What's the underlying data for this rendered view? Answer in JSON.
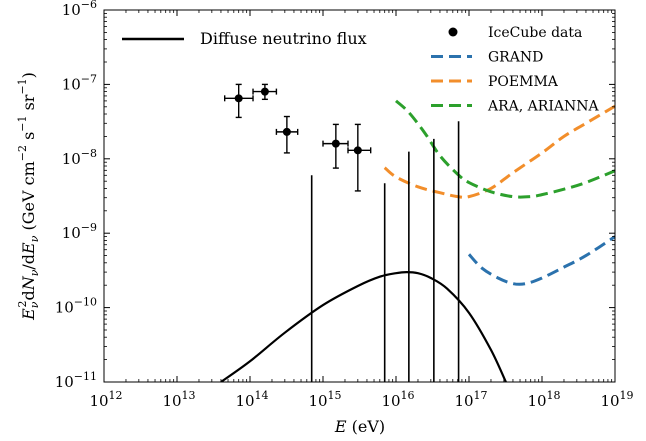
{
  "chart_data": {
    "type": "line",
    "x_scale": "log",
    "y_scale": "log",
    "xlim": [
      1000000000000.0,
      1e+19
    ],
    "ylim": [
      1e-11,
      1e-06
    ],
    "xlabel": "E (eV)",
    "ylabel": "E_ν^2 dN_ν/dE_ν (GeV cm^-2 s^-1 sr^-1)",
    "x_tick_labels": [
      "10^12",
      "10^13",
      "10^14",
      "10^15",
      "10^16",
      "10^17",
      "10^18",
      "10^19"
    ],
    "y_tick_labels": [
      "10^-11",
      "10^-10",
      "10^-9",
      "10^-8",
      "10^-7",
      "10^-6"
    ],
    "grid": false,
    "legends": [
      {
        "placement": "top-left",
        "entries": [
          "Diffuse neutrino flux"
        ]
      },
      {
        "placement": "top-right",
        "entries": [
          "IceCube data",
          "GRAND",
          "POEMMA",
          "ARA, ARIANNA"
        ]
      }
    ],
    "series": [
      {
        "name": "Diffuse neutrino flux",
        "style": "solid",
        "color": "#000000",
        "x": [
          40000000000000.0,
          100000000000000.0,
          300000000000000.0,
          1000000000000000.0,
          3000000000000000.0,
          6000000000000000.0,
          1e+16,
          1.4e+16,
          2e+16,
          3e+16,
          5e+16,
          1e+17,
          2e+17,
          3.2e+17
        ],
        "y": [
          1e-11,
          1.9e-11,
          4.6e-11,
          1.08e-10,
          1.95e-10,
          2.6e-10,
          2.9e-10,
          3e-10,
          2.9e-10,
          2.5e-10,
          1.8e-10,
          8.5e-11,
          2.7e-11,
          1e-11
        ]
      },
      {
        "name": "GRAND",
        "style": "dashed",
        "color": "#2b72ad",
        "x": [
          1e+17,
          1.5e+17,
          2.5e+17,
          4e+17,
          6e+17,
          1e+18,
          2e+18,
          4e+18,
          1e+19
        ],
        "y": [
          5.2e-10,
          3.4e-10,
          2.5e-10,
          2.1e-10,
          2.1e-10,
          2.5e-10,
          3.5e-10,
          5e-10,
          9e-10
        ]
      },
      {
        "name": "POEMMA",
        "style": "dashed",
        "color": "#f28e2b",
        "x": [
          7000000000000000.0,
          1e+16,
          2e+16,
          4e+16,
          7e+16,
          1e+17,
          2e+17,
          4e+17,
          1e+18,
          2e+18,
          4e+18,
          1e+19
        ],
        "y": [
          7.6e-09,
          5.7e-09,
          4.2e-09,
          3.5e-09,
          3.1e-09,
          3.1e-09,
          4e-09,
          6.5e-09,
          1.2e-08,
          2e-08,
          3e-08,
          5.1e-08
        ]
      },
      {
        "name": "ARA, ARIANNA",
        "style": "dashed",
        "color": "#2ca02c",
        "x": [
          1e+16,
          1.5e+16,
          2.5e+16,
          4e+16,
          7e+16,
          1e+17,
          2e+17,
          4e+17,
          7e+17,
          1e+18,
          2e+18,
          4e+18,
          1e+19
        ],
        "y": [
          6e-08,
          4.2e-08,
          2.2e-08,
          1.1e-08,
          6.2e-09,
          4.8e-09,
          3.6e-09,
          3.1e-09,
          3.1e-09,
          3.3e-09,
          3.9e-09,
          4.8e-09,
          6.9e-09
        ]
      }
    ],
    "icecube_points": [
      {
        "x": 70000000000000.0,
        "y": 6.5e-08,
        "x_err": [
          45000000000000.0,
          110000000000000.0
        ],
        "y_err": [
          3.6e-08,
          1e-07
        ]
      },
      {
        "x": 160000000000000.0,
        "y": 8e-08,
        "x_err": [
          110000000000000.0,
          230000000000000.0
        ],
        "y_err": [
          6.3e-08,
          1e-07
        ]
      },
      {
        "x": 320000000000000.0,
        "y": 2.3e-08,
        "x_err": [
          230000000000000.0,
          450000000000000.0
        ],
        "y_err": [
          1.2e-08,
          3.7e-08
        ]
      },
      {
        "x": 1500000000000000.0,
        "y": 1.6e-08,
        "x_err": [
          1000000000000000.0,
          2200000000000000.0
        ],
        "y_err": [
          7.5e-09,
          2.9e-08
        ]
      },
      {
        "x": 3000000000000000.0,
        "y": 1.3e-08,
        "x_err": [
          2200000000000000.0,
          4500000000000000.0
        ],
        "y_err": [
          3.7e-09,
          2.9e-08
        ]
      }
    ],
    "upper_limits": [
      {
        "x": 700000000000000.0,
        "y": 6e-09
      },
      {
        "x": 7000000000000000.0,
        "y": 4.7e-09
      },
      {
        "x": 1.5e+16,
        "y": 1.25e-08
      },
      {
        "x": 3.3e+16,
        "y": 1.85e-08
      },
      {
        "x": 7.2e+16,
        "y": 3.2e-08
      }
    ]
  }
}
